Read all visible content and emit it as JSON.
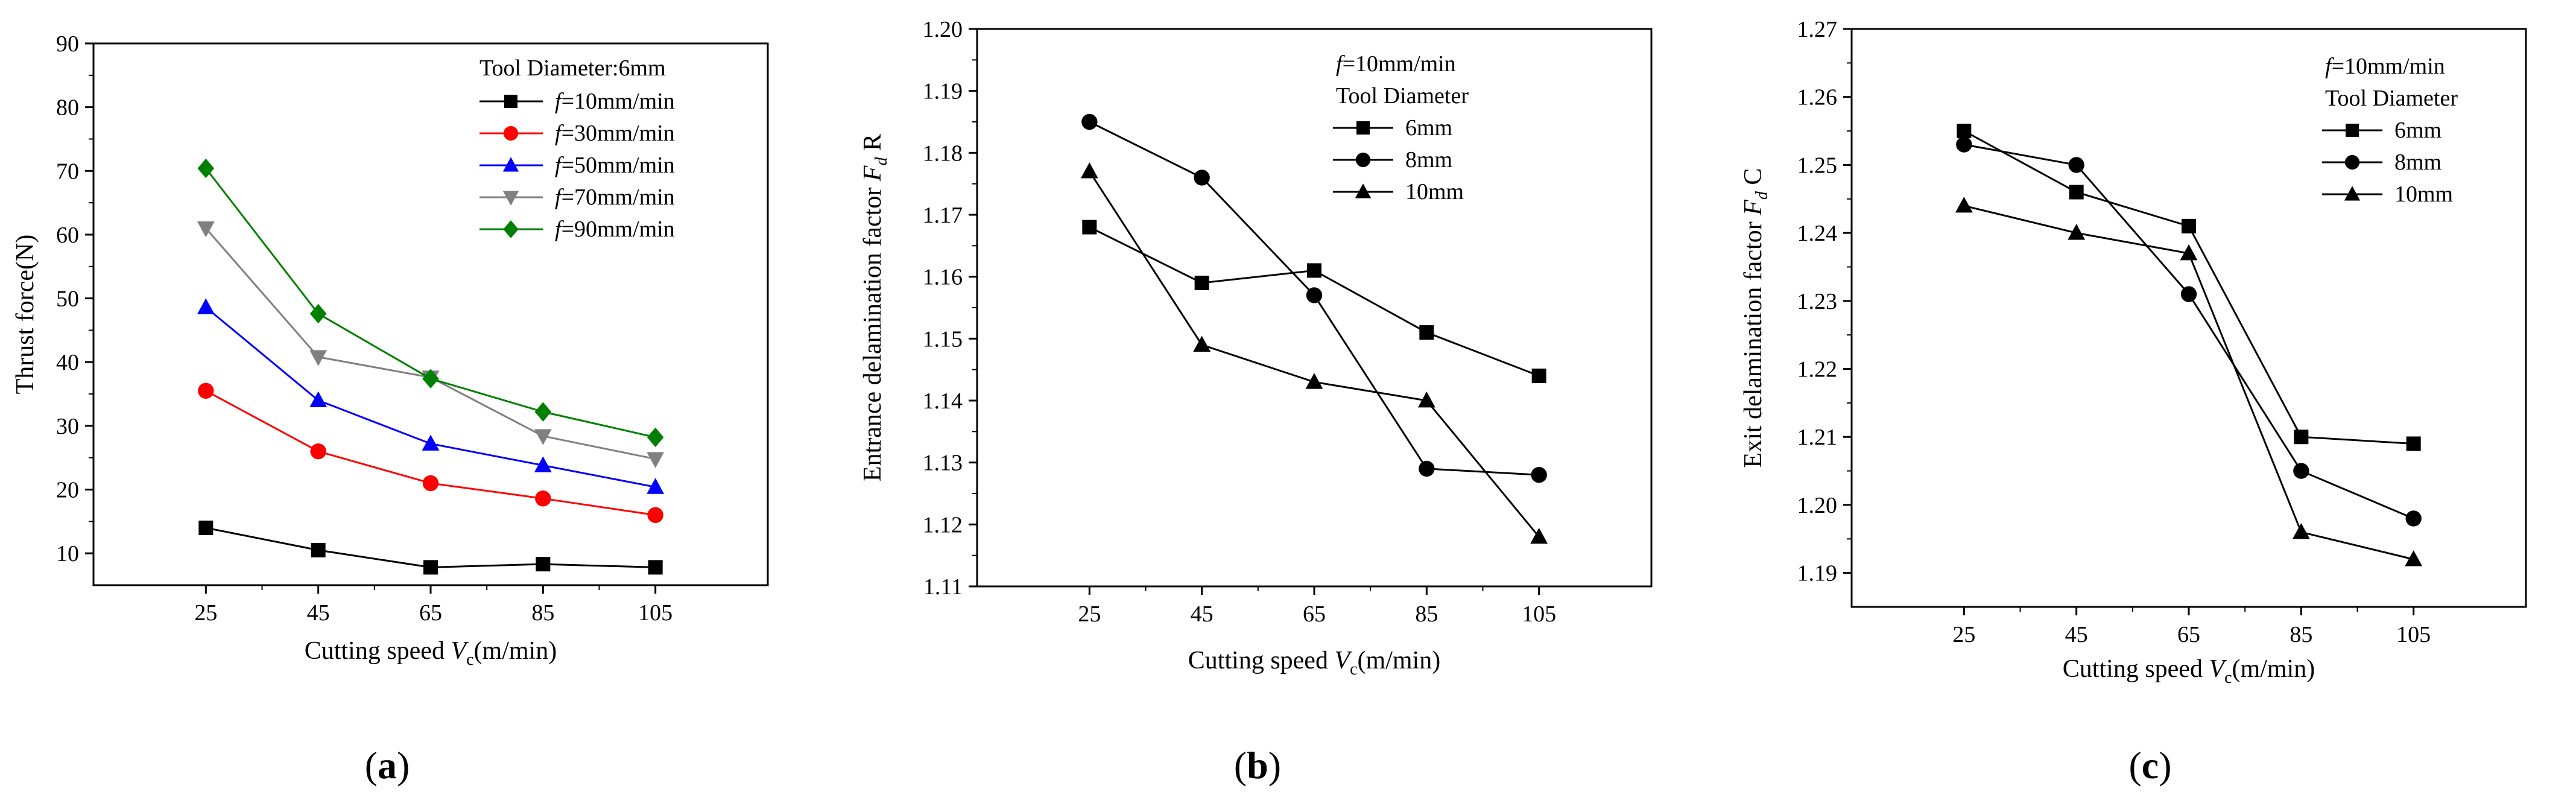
{
  "chart_data": [
    {
      "id": "a",
      "type": "line",
      "panel_label": "(a)",
      "xlabel": "Cutting speed V_c(m/min)",
      "xlabel_main": "Cutting speed ",
      "xlabel_var": "V",
      "xlabel_sub": "c",
      "xlabel_unit": "(m/min)",
      "ylabel": "Thrust force(N)",
      "x": [
        25,
        45,
        65,
        85,
        105
      ],
      "x_tick_labels": [
        "25",
        "45",
        "65",
        "85",
        "105"
      ],
      "xlim": [
        5,
        125
      ],
      "ylim": [
        5,
        90
      ],
      "y_ticks": [
        10,
        20,
        30,
        40,
        50,
        60,
        70,
        80,
        90
      ],
      "y_tick_labels": [
        "10",
        "20",
        "30",
        "40",
        "50",
        "60",
        "70",
        "80",
        "90"
      ],
      "legend_title": "Tool Diameter:6mm",
      "legend_position": "top-right",
      "series": [
        {
          "name": "f=10mm/min",
          "label_var": "f",
          "label_rest": "=10mm/min",
          "values": [
            14,
            10.5,
            7.8,
            8.3,
            7.8
          ],
          "color": "#000000",
          "marker": "square"
        },
        {
          "name": "f=30mm/min",
          "label_var": "f",
          "label_rest": "=30mm/min",
          "values": [
            35.5,
            26,
            21,
            18.6,
            16
          ],
          "color": "#ff0000",
          "marker": "circle"
        },
        {
          "name": "f=50mm/min",
          "label_var": "f",
          "label_rest": "=50mm/min",
          "values": [
            48.6,
            34,
            27.2,
            23.8,
            20.4
          ],
          "color": "#0000ff",
          "marker": "triangle-up"
        },
        {
          "name": "f=70mm/min",
          "label_var": "f",
          "label_rest": "=70mm/min",
          "values": [
            61,
            40.8,
            37.6,
            28.4,
            24.8
          ],
          "color": "#808080",
          "marker": "triangle-down"
        },
        {
          "name": "f=90mm/min",
          "label_var": "f",
          "label_rest": "=90mm/min",
          "values": [
            70.4,
            47.6,
            37.4,
            32.2,
            28.2
          ],
          "color": "#008000",
          "marker": "diamond"
        }
      ]
    },
    {
      "id": "b",
      "type": "line",
      "panel_label": "(b)",
      "xlabel": "Cutting speed V_c(m/min)",
      "xlabel_main": "Cutting speed ",
      "xlabel_var": "V",
      "xlabel_sub": "c",
      "xlabel_unit": "(m/min)",
      "ylabel": "Entrance delamination factor F_d R",
      "ylabel_main": "Entrance delamination factor ",
      "ylabel_var": "F",
      "ylabel_sub": "d",
      "ylabel_tail": " R",
      "x": [
        25,
        45,
        65,
        85,
        105
      ],
      "x_tick_labels": [
        "25",
        "45",
        "65",
        "85",
        "105"
      ],
      "xlim": [
        5,
        125
      ],
      "ylim": [
        1.11,
        1.2
      ],
      "y_ticks": [
        1.11,
        1.12,
        1.13,
        1.14,
        1.15,
        1.16,
        1.17,
        1.18,
        1.19,
        1.2
      ],
      "y_tick_labels": [
        "1.11",
        "1.12",
        "1.13",
        "1.14",
        "1.15",
        "1.16",
        "1.17",
        "1.18",
        "1.19",
        "1.20"
      ],
      "legend_title_var": "f",
      "legend_title": "=10mm/min",
      "legend_subtitle": "Tool Diameter",
      "legend_position": "top-center",
      "series": [
        {
          "name": "6mm",
          "values": [
            1.168,
            1.159,
            1.161,
            1.151,
            1.144
          ],
          "color": "#000000",
          "marker": "square"
        },
        {
          "name": "8mm",
          "values": [
            1.185,
            1.176,
            1.157,
            1.129,
            1.128
          ],
          "color": "#000000",
          "marker": "circle"
        },
        {
          "name": "10mm",
          "values": [
            1.177,
            1.149,
            1.143,
            1.14,
            1.118
          ],
          "color": "#000000",
          "marker": "triangle-up"
        }
      ]
    },
    {
      "id": "c",
      "type": "line",
      "panel_label": "(c)",
      "xlabel": "Cutting speed V_c(m/min)",
      "xlabel_main": "Cutting speed ",
      "xlabel_var": "V",
      "xlabel_sub": "c",
      "xlabel_unit": "(m/min)",
      "ylabel": "Exit delamination factor F_d C",
      "ylabel_main": "Exit delamination factor ",
      "ylabel_var": "F",
      "ylabel_sub": "d",
      "ylabel_tail": " C",
      "x": [
        25,
        45,
        65,
        85,
        105
      ],
      "x_tick_labels": [
        "25",
        "45",
        "65",
        "85",
        "105"
      ],
      "xlim": [
        5,
        125
      ],
      "ylim": [
        1.185,
        1.27
      ],
      "y_ticks": [
        1.19,
        1.2,
        1.21,
        1.22,
        1.23,
        1.24,
        1.25,
        1.26,
        1.27
      ],
      "y_tick_labels": [
        "1.19",
        "1.20",
        "1.21",
        "1.22",
        "1.23",
        "1.24",
        "1.25",
        "1.26",
        "1.27"
      ],
      "legend_title_var": "f",
      "legend_title": "=10mm/min",
      "legend_subtitle": "Tool Diameter",
      "legend_position": "top-right",
      "series": [
        {
          "name": "6mm",
          "values": [
            1.255,
            1.246,
            1.241,
            1.21,
            1.209
          ],
          "color": "#000000",
          "marker": "square"
        },
        {
          "name": "8mm",
          "values": [
            1.253,
            1.25,
            1.231,
            1.205,
            1.198
          ],
          "color": "#000000",
          "marker": "circle"
        },
        {
          "name": "10mm",
          "values": [
            1.244,
            1.24,
            1.237,
            1.196,
            1.192
          ],
          "color": "#000000",
          "marker": "triangle-up"
        }
      ]
    }
  ]
}
